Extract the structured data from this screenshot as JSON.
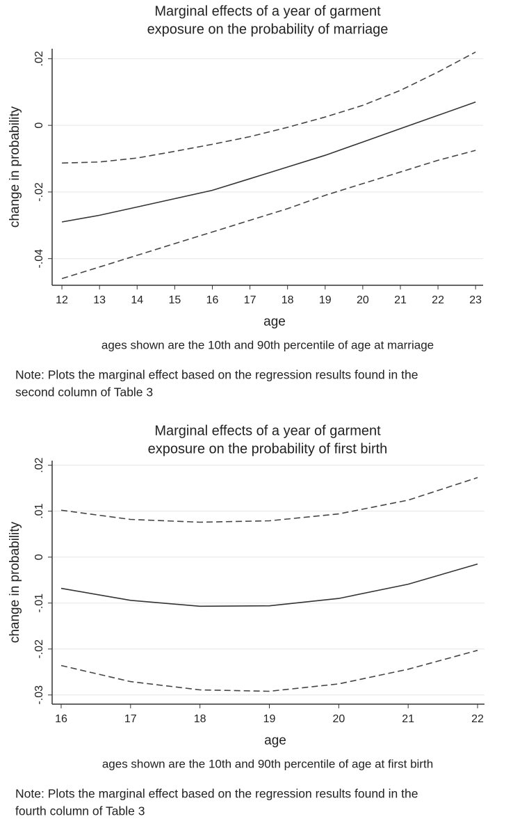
{
  "chart_data": [
    {
      "type": "line",
      "title": [
        "Marginal effects of a year of garment",
        "exposure on the probability of marriage"
      ],
      "xlabel": "age",
      "ylabel": "change in probability",
      "caption": "ages shown are the 10th and 90th percentile of age at marriage",
      "note": [
        "Note: Plots the marginal effect based on the regression results found in the",
        "second column of Table 3"
      ],
      "x": [
        12,
        13,
        14,
        15,
        16,
        17,
        18,
        19,
        20,
        21,
        22,
        23
      ],
      "xlim": [
        11.74,
        23.2
      ],
      "xticks": [
        12,
        13,
        14,
        15,
        16,
        17,
        18,
        19,
        20,
        21,
        22,
        23
      ],
      "ylim": [
        -0.048,
        0.023
      ],
      "yticks": [
        {
          "value": -0.04,
          "label": "-.04"
        },
        {
          "value": -0.02,
          "label": "-.02"
        },
        0,
        {
          "value": 0.02,
          "label": ".02"
        }
      ],
      "grid": true,
      "series": [
        {
          "color": "#333333",
          "style": "solid",
          "values": [
            -0.029,
            -0.027,
            -0.0245,
            -0.022,
            -0.0195,
            -0.016,
            -0.0125,
            -0.009,
            -0.005,
            -0.001,
            0.003,
            0.007
          ]
        },
        {
          "color": "#444444",
          "style": "dashed",
          "values": [
            -0.0113,
            -0.011,
            -0.0098,
            -0.0078,
            -0.0057,
            -0.0034,
            -0.0006,
            0.0025,
            0.006,
            0.0105,
            0.016,
            0.022
          ]
        },
        {
          "color": "#444444",
          "style": "dashed",
          "values": [
            -0.046,
            -0.0425,
            -0.039,
            -0.0355,
            -0.032,
            -0.0285,
            -0.025,
            -0.021,
            -0.0175,
            -0.014,
            -0.0105,
            -0.0075
          ]
        }
      ]
    },
    {
      "type": "line",
      "title": [
        "Marginal effects of a year of garment",
        "exposure on the probability of first birth"
      ],
      "xlabel": "age",
      "ylabel": "change in probability",
      "caption": "ages shown are the 10th and 90th percentile of age at first birth",
      "note": [
        "Note: Plots the marginal effect based on the regression results found in the",
        "fourth column of Table 3"
      ],
      "x": [
        16,
        17,
        18,
        19,
        20,
        21,
        22
      ],
      "xlim": [
        15.87,
        22.1
      ],
      "xticks": [
        16,
        17,
        18,
        19,
        20,
        21,
        22
      ],
      "ylim": [
        -0.032,
        0.021
      ],
      "yticks": [
        {
          "value": -0.03,
          "label": "-.03"
        },
        {
          "value": -0.02,
          "label": "-.02"
        },
        {
          "value": -0.01,
          "label": "-.01"
        },
        0,
        {
          "value": 0.01,
          "label": ".01"
        },
        {
          "value": 0.02,
          "label": ".02"
        }
      ],
      "grid": true,
      "series": [
        {
          "color": "#333333",
          "style": "solid",
          "values": [
            -0.0068,
            -0.0094,
            -0.0107,
            -0.0106,
            -0.009,
            -0.0059,
            -0.0015
          ]
        },
        {
          "color": "#444444",
          "style": "dashed",
          "values": [
            0.0102,
            0.0082,
            0.0076,
            0.0079,
            0.0094,
            0.0124,
            0.0173
          ]
        },
        {
          "color": "#444444",
          "style": "dashed",
          "values": [
            -0.0236,
            -0.0271,
            -0.0289,
            -0.0292,
            -0.0276,
            -0.0244,
            -0.0203
          ]
        }
      ]
    }
  ]
}
